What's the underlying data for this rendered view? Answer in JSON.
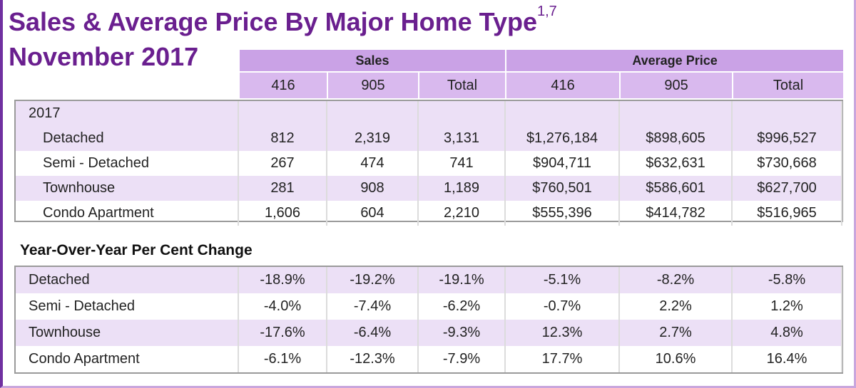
{
  "title": {
    "line1": "Sales & Average Price By Major Home Type",
    "superscript": "1,7",
    "line2": "November 2017"
  },
  "header": {
    "groups": [
      "Sales",
      "Average Price"
    ],
    "columns": [
      "416",
      "905",
      "Total",
      "416",
      "905",
      "Total"
    ]
  },
  "table_2017": {
    "year_label": "2017",
    "rows": [
      {
        "label": "Detached",
        "values": [
          "812",
          "2,319",
          "3,131",
          "$1,276,184",
          "$898,605",
          "$996,527"
        ]
      },
      {
        "label": "Semi - Detached",
        "values": [
          "267",
          "474",
          "741",
          "$904,711",
          "$632,631",
          "$730,668"
        ]
      },
      {
        "label": "Townhouse",
        "values": [
          "281",
          "908",
          "1,189",
          "$760,501",
          "$586,601",
          "$627,700"
        ]
      },
      {
        "label": "Condo Apartment",
        "values": [
          "1,606",
          "604",
          "2,210",
          "$555,396",
          "$414,782",
          "$516,965"
        ]
      }
    ]
  },
  "yoy": {
    "title": "Year-Over-Year Per Cent Change",
    "rows": [
      {
        "label": "Detached",
        "values": [
          "-18.9%",
          "-19.2%",
          "-19.1%",
          "-5.1%",
          "-8.2%",
          "-5.8%"
        ]
      },
      {
        "label": "Semi - Detached",
        "values": [
          "-4.0%",
          "-7.4%",
          "-6.2%",
          "-0.7%",
          "2.2%",
          "1.2%"
        ]
      },
      {
        "label": "Townhouse",
        "values": [
          "-17.6%",
          "-6.4%",
          "-9.3%",
          "12.3%",
          "2.7%",
          "4.8%"
        ]
      },
      {
        "label": "Condo Apartment",
        "values": [
          "-6.1%",
          "-12.3%",
          "-7.9%",
          "17.7%",
          "10.6%",
          "16.4%"
        ]
      }
    ]
  },
  "colors": {
    "title": "#6a1f8f",
    "header": "#d9b9ee",
    "header_group": "#caa2e6",
    "row_alt": "#ece0f6",
    "frame": "#7030a0"
  }
}
